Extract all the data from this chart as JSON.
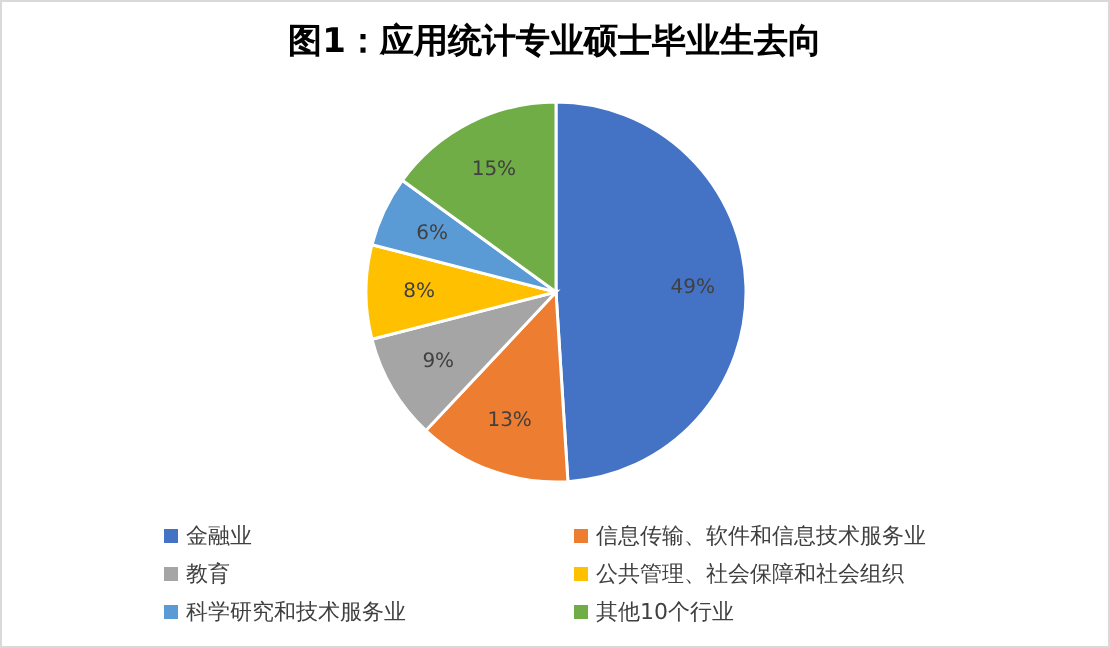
{
  "chart_data": {
    "type": "pie",
    "title": "图1：应用统计专业硕士毕业生去向",
    "categories": [
      "金融业",
      "信息传输、软件和信息技术服务业",
      "教育",
      "公共管理、社会保障和社会组织",
      "科学研究和技术服务业",
      "其他10个行业"
    ],
    "values": [
      49,
      13,
      9,
      8,
      6,
      15
    ],
    "colors": [
      "#4472c4",
      "#ed7d31",
      "#a5a5a5",
      "#ffc000",
      "#5b9bd5",
      "#70ad47"
    ],
    "value_labels": [
      "49%",
      "13%",
      "9%",
      "8%",
      "6%",
      "15%"
    ],
    "legend": "bottom"
  }
}
